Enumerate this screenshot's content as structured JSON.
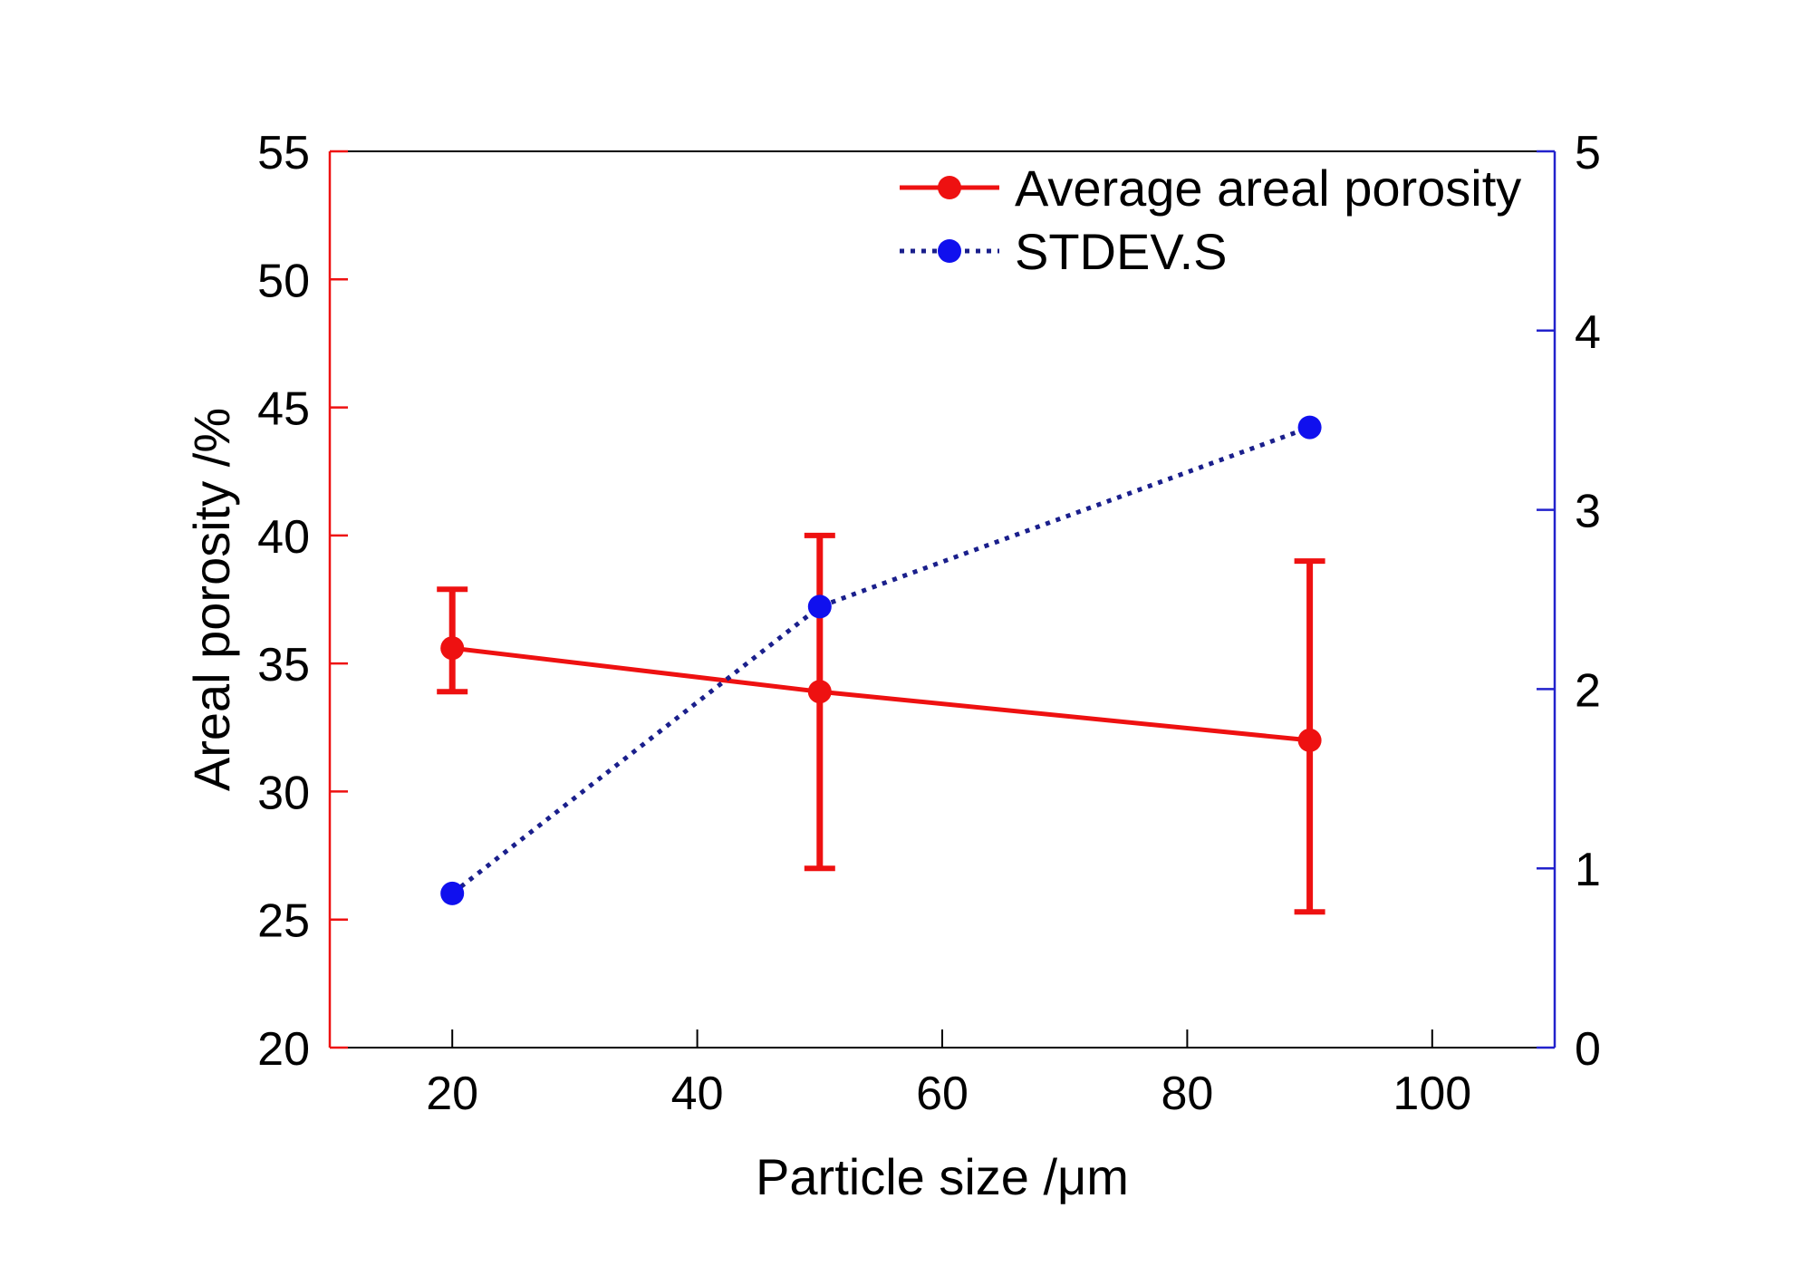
{
  "chart_data": {
    "type": "line",
    "title": "",
    "xlabel": "Particle size /μm",
    "ylabel": "Areal porosity /%",
    "y2label": "",
    "xlim": [
      10,
      110
    ],
    "ylim": [
      20,
      55
    ],
    "y2lim": [
      0,
      5
    ],
    "x_ticks": [
      20,
      40,
      60,
      80,
      100
    ],
    "y_ticks": [
      20,
      25,
      30,
      35,
      40,
      45,
      50,
      55
    ],
    "y2_ticks": [
      0,
      1,
      2,
      3,
      4,
      5
    ],
    "grid": false,
    "legend_position": "top-right",
    "series": [
      {
        "name": "Average areal porosity",
        "axis": "left",
        "style": "solid",
        "color": "#ee1111",
        "x": [
          20,
          50,
          90
        ],
        "values": [
          35.6,
          33.9,
          32.0
        ],
        "error_low": [
          33.9,
          27.0,
          25.3
        ],
        "error_high": [
          37.9,
          40.0,
          39.0
        ]
      },
      {
        "name": "STDEV.S",
        "axis": "right",
        "style": "dotted",
        "color": "#1a1f8c",
        "marker_color": "#1010ee",
        "x": [
          20,
          50,
          90
        ],
        "values": [
          0.86,
          2.46,
          3.46
        ]
      }
    ],
    "axis_colors": {
      "left": "#ee1111",
      "right": "#2222cc",
      "frame": "#000000"
    }
  }
}
